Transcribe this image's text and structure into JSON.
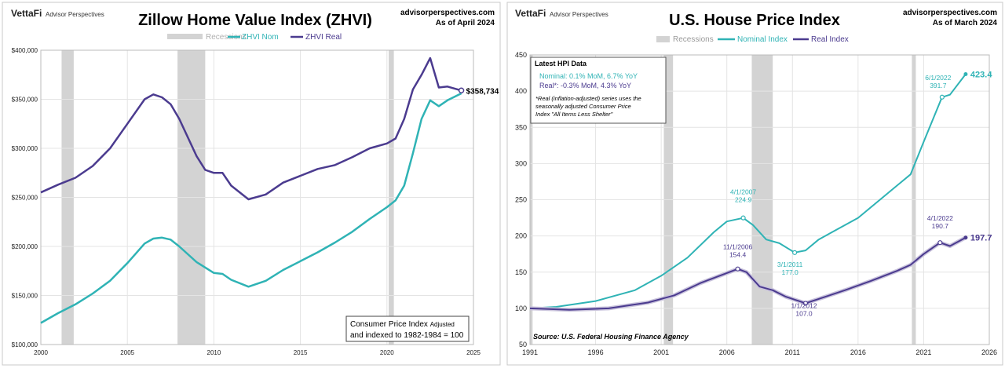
{
  "colors": {
    "nominal": "#2fb3b5",
    "real": "#4b3b8f",
    "real_glow": "#c9c3dc",
    "recession": "#d3d3d3",
    "grid": "#e4e4e4"
  },
  "chart_data": [
    {
      "type": "line",
      "brand": "VettaFi",
      "brand_sub": "Advisor Perspectives",
      "title": "Zillow Home Value Index (ZHVI)",
      "source_site": "advisorperspectives.com",
      "as_of": "As of April 2024",
      "legend": {
        "recessions": "Recessions",
        "nominal": "ZHVI Nom",
        "real": "ZHVI Real"
      },
      "x_ticks": [
        "2000",
        "2005",
        "2010",
        "2015",
        "2020",
        "2025"
      ],
      "xlim": [
        2000,
        2025
      ],
      "y_ticks": [
        "$100,000",
        "$150,000",
        "$200,000",
        "$250,000",
        "$300,000",
        "$350,000",
        "$400,000"
      ],
      "ylim": [
        100000,
        400000
      ],
      "recessions": [
        [
          2001.2,
          2001.9
        ],
        [
          2007.9,
          2009.5
        ],
        [
          2020.1,
          2020.4
        ]
      ],
      "series": [
        {
          "key": "nominal",
          "x": [
            2000,
            2001,
            2002,
            2003,
            2004,
            2005,
            2006,
            2006.5,
            2007,
            2007.5,
            2008,
            2009,
            2010,
            2010.5,
            2011,
            2012,
            2013,
            2014,
            2015,
            2016,
            2017,
            2018,
            2019,
            2020,
            2020.5,
            2021,
            2021.5,
            2022,
            2022.5,
            2023,
            2023.5,
            2024.3
          ],
          "values": [
            122000,
            132000,
            141000,
            152000,
            165000,
            183000,
            203000,
            208000,
            209000,
            207000,
            200000,
            184000,
            173000,
            172000,
            166000,
            159000,
            165000,
            176000,
            185000,
            194000,
            204000,
            215000,
            228000,
            240000,
            247000,
            262000,
            295000,
            330000,
            349000,
            343000,
            349000,
            356000
          ]
        },
        {
          "key": "real",
          "label_value": "$358,734",
          "x": [
            2000,
            2001,
            2002,
            2003,
            2004,
            2005,
            2006,
            2006.5,
            2007,
            2007.5,
            2008,
            2009,
            2009.5,
            2010,
            2010.5,
            2011,
            2012,
            2013,
            2014,
            2015,
            2016,
            2017,
            2018,
            2019,
            2020,
            2020.5,
            2021,
            2021.5,
            2022,
            2022.5,
            2023,
            2023.5,
            2024.3
          ],
          "values": [
            255000,
            263000,
            270000,
            282000,
            300000,
            325000,
            350000,
            355000,
            352000,
            345000,
            330000,
            292000,
            278000,
            275000,
            275000,
            262000,
            248000,
            253000,
            265000,
            272000,
            279000,
            283000,
            291000,
            300000,
            305000,
            310000,
            330000,
            360000,
            375000,
            392000,
            362000,
            363000,
            359000
          ]
        }
      ],
      "note_line1": "Consumer Price Index",
      "note_line1b": "Adjusted",
      "note_line2": "and indexed to 1982-1984 = 100"
    },
    {
      "type": "line",
      "brand": "VettaFi",
      "brand_sub": "Advisor Perspectives",
      "title": "U.S. House Price Index",
      "source_site": "advisorperspectives.com",
      "as_of": "As of March 2024",
      "legend": {
        "recessions": "Recessions",
        "nominal": "Nominal Index",
        "real": "Real Index"
      },
      "x_ticks": [
        "1991",
        "1996",
        "2001",
        "2006",
        "2011",
        "2016",
        "2021",
        "2026"
      ],
      "xlim": [
        1991,
        2026
      ],
      "y_ticks": [
        "50",
        "100",
        "150",
        "200",
        "250",
        "300",
        "350",
        "400",
        "450"
      ],
      "ylim": [
        50,
        450
      ],
      "recessions": [
        [
          1991,
          1991.2
        ],
        [
          2001.2,
          2001.9
        ],
        [
          2007.9,
          2009.5
        ],
        [
          2020.1,
          2020.4
        ]
      ],
      "series": [
        {
          "key": "nominal",
          "label_value": "423.4",
          "x": [
            1991,
            1993,
            1996,
            1999,
            2001,
            2003,
            2005,
            2006,
            2007.25,
            2008,
            2009,
            2010,
            2011.17,
            2012,
            2013,
            2014,
            2016,
            2018,
            2019,
            2020,
            2021,
            2022.4,
            2023,
            2024.2
          ],
          "values": [
            100,
            102,
            110,
            125,
            145,
            170,
            205,
            220,
            224.9,
            215,
            195,
            190,
            177,
            180,
            195,
            205,
            225,
            255,
            270,
            285,
            330,
            391.7,
            395,
            423.4
          ]
        },
        {
          "key": "real",
          "label_value": "197.7",
          "x": [
            1991,
            1994,
            1997,
            2000,
            2002,
            2004,
            2006.83,
            2007.5,
            2008.5,
            2009.5,
            2010.5,
            2012,
            2013,
            2015,
            2017,
            2019,
            2020,
            2021,
            2022.25,
            2023,
            2024.2
          ],
          "values": [
            100,
            98,
            100,
            108,
            118,
            135,
            154.4,
            150,
            130,
            125,
            116,
            107,
            113,
            125,
            138,
            152,
            160,
            175,
            190.7,
            186,
            197.7
          ]
        }
      ],
      "annotations": [
        {
          "date": "4/1/2007",
          "value": "224.9"
        },
        {
          "date": "3/1/2011",
          "value": "177.0"
        },
        {
          "date": "6/1/2022",
          "value": "391.7"
        },
        {
          "date": "11/1/2006",
          "value": "154.4"
        },
        {
          "date": "1/1/2012",
          "value": "107.0"
        },
        {
          "date": "4/1/2022",
          "value": "190.7"
        }
      ],
      "hpi_box": {
        "title": "Latest HPI Data",
        "nominal": "Nominal:  0.1% MoM, 6.7% YoY",
        "real": "Real*:  -0.3% MoM, 4.3% YoY",
        "foot1": "*Real (inflation-adjusted) series uses the",
        "foot2": "seasonally adjusted Consumer Price",
        "foot3": "Index \"All Items Less Shelter\""
      },
      "source": "Source: U.S. Federal Housing Finance Agency"
    }
  ]
}
